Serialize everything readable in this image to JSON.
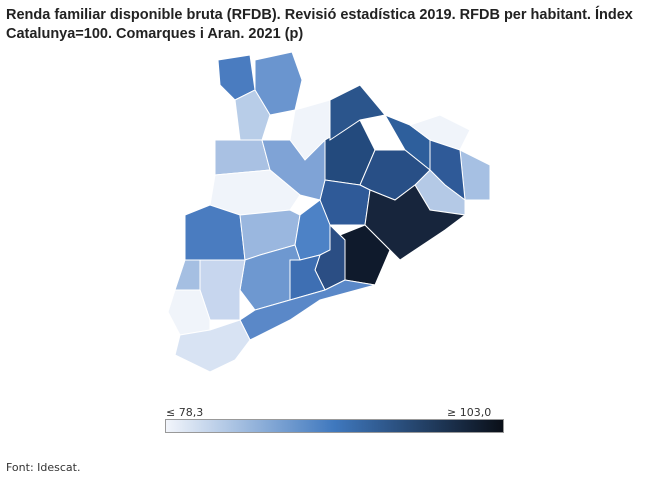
{
  "title": "Renda familiar disponible bruta (RFDB). Revisió estadística 2019. RFDB per habitant. Índex Catalunya=100. Comarques i Aran. 2021 (p)",
  "legend": {
    "min_label": "≤ 78,3",
    "max_label": "≥ 103,0",
    "min_value": 78.3,
    "max_value": 103.0,
    "colors": [
      "#f2f5fb",
      "#3f78be",
      "#0a0f18"
    ]
  },
  "map": {
    "type": "choropleth",
    "border_color": "#ffffff",
    "region_colors": [
      "#4a7cc0",
      "#6a95cf",
      "#b8cde8",
      "#f0f4fa",
      "#a9c1e3",
      "#234a7d",
      "#2b558c",
      "#2e5f9c",
      "#f0f4fa",
      "#a6c0e3",
      "#2f5a98",
      "#b4c9e6",
      "#284f86",
      "#2f5a98",
      "#7fa3d6",
      "#f0f4fa",
      "#4a7cc0",
      "#9ab7df",
      "#4d82c6",
      "#0f1a2c",
      "#17253c",
      "#2b4e84",
      "#3e6fb3",
      "#6e98d0",
      "#5a88c8",
      "#c7d6ee",
      "#a5bfe2",
      "#f0f4fa",
      "#d8e3f3"
    ]
  },
  "source": "Font: Idescat."
}
